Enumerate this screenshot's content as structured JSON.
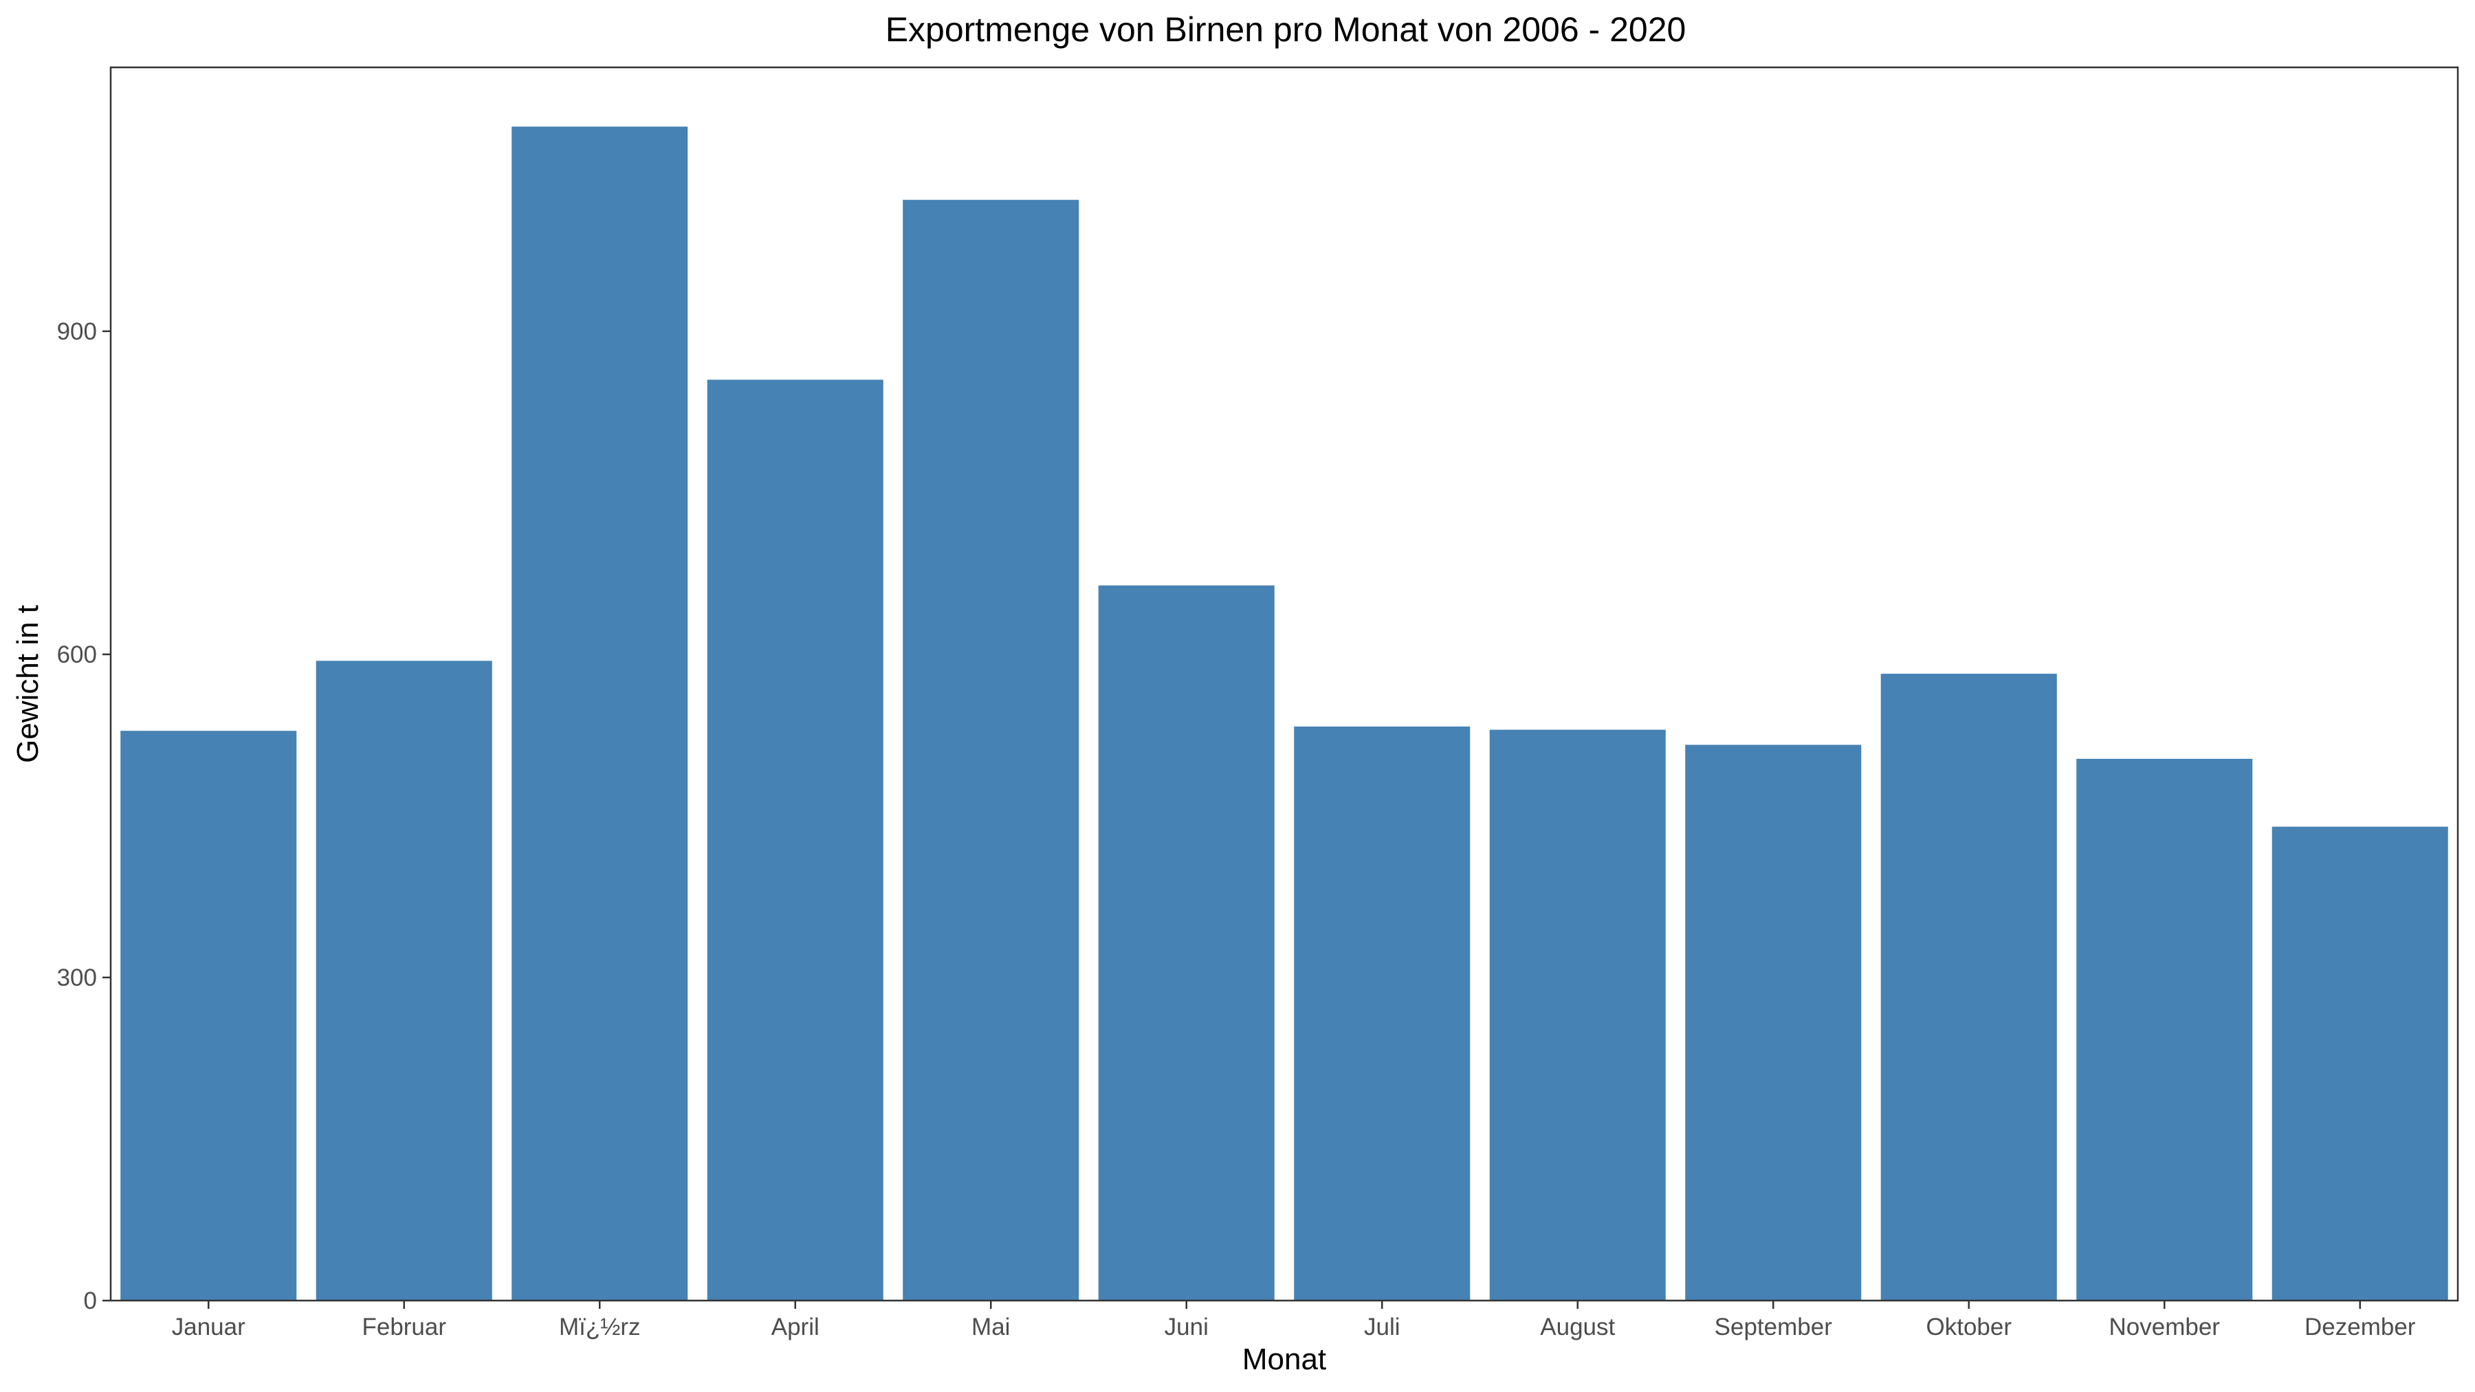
{
  "chart_data": {
    "type": "bar",
    "title": "Exportmenge von Birnen pro Monat von 2006 - 2020",
    "xlabel": "Monat",
    "ylabel": "Gewicht in t",
    "categories": [
      "Januar",
      "Februar",
      "Mï¿½rz",
      "April",
      "Mai",
      "Juni",
      "Juli",
      "August",
      "September",
      "Oktober",
      "November",
      "Dezember"
    ],
    "values": [
      529,
      594,
      1090,
      855,
      1022,
      664,
      533,
      530,
      516,
      582,
      503,
      440
    ],
    "ylim": [
      0,
      1145
    ],
    "yticks": [
      0,
      300,
      600,
      900
    ],
    "bar_color": "#4682B4",
    "grid": false,
    "legend": "none"
  }
}
